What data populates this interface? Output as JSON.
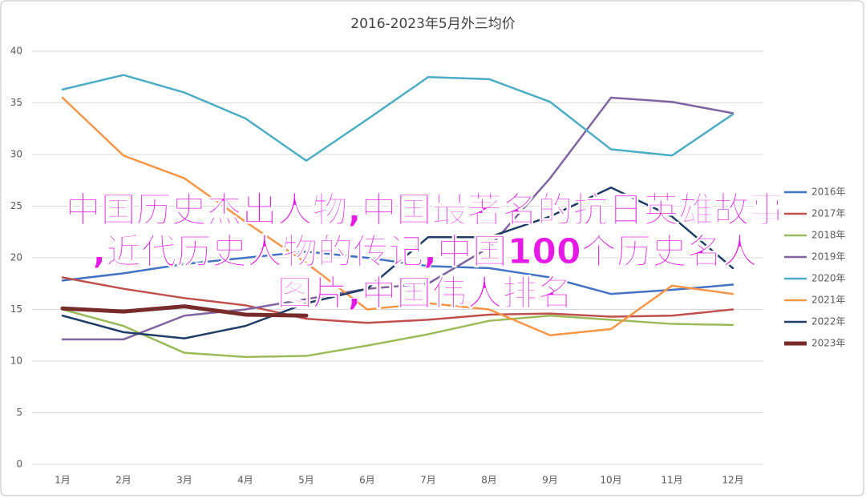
{
  "chart_data": {
    "type": "line",
    "title": "2016-2023年5月外三均价",
    "categories": [
      "1月",
      "2月",
      "3月",
      "4月",
      "5月",
      "6月",
      "7月",
      "8月",
      "9月",
      "10月",
      "11月",
      "12月"
    ],
    "ylim": [
      0,
      40
    ],
    "yticks": [
      0,
      5,
      10,
      15,
      20,
      25,
      30,
      35,
      40
    ],
    "grid": true,
    "legend": "right",
    "series": [
      {
        "name": "2016年",
        "color": "#4472c4",
        "values": [
          17.8,
          18.5,
          19.4,
          20,
          20.6,
          20,
          19.2,
          19,
          18.1,
          16.5,
          16.9,
          17.4
        ]
      },
      {
        "name": "2017年",
        "color": "#c0504d",
        "values": [
          18.1,
          17,
          16.1,
          15.4,
          14.1,
          13.7,
          14,
          14.5,
          14.6,
          14.3,
          14.4,
          15
        ]
      },
      {
        "name": "2018年",
        "color": "#9bbb59",
        "values": [
          15,
          13.4,
          10.8,
          10.4,
          10.5,
          11.5,
          12.6,
          13.9,
          14.4,
          14,
          13.6,
          13.5
        ]
      },
      {
        "name": "2019年",
        "color": "#8064a2",
        "values": [
          12.1,
          12.1,
          14.4,
          15,
          16,
          17,
          17.5,
          21,
          27.7,
          35.5,
          35.1,
          34
        ]
      },
      {
        "name": "2020年",
        "color": "#4bacc6",
        "values": [
          36.3,
          37.7,
          36,
          33.5,
          29.4,
          33.4,
          37.5,
          37.3,
          35.1,
          30.5,
          29.9,
          33.9
        ]
      },
      {
        "name": "2021年",
        "color": "#f79646",
        "values": [
          35.5,
          29.9,
          27.7,
          23.5,
          19.5,
          15,
          15.6,
          15,
          12.5,
          13.1,
          17.3,
          16.5
        ]
      },
      {
        "name": "2022年",
        "color": "#1f3d66",
        "values": [
          14.4,
          12.8,
          12.2,
          13.4,
          15.6,
          17,
          22,
          22,
          24,
          26.8,
          24,
          19
        ]
      },
      {
        "name": "2023年",
        "color": "#772c2a",
        "values": [
          15.1,
          14.8,
          15.3,
          14.5,
          14.4,
          null,
          null,
          null,
          null,
          null,
          null,
          null
        ]
      }
    ]
  },
  "overlay_text": [
    "中国历史杰出人物,中国最著名的抗日英雄故事",
    ",近代历史人物的传记,中国100个历史名人",
    "图片,中国伟人排名"
  ]
}
